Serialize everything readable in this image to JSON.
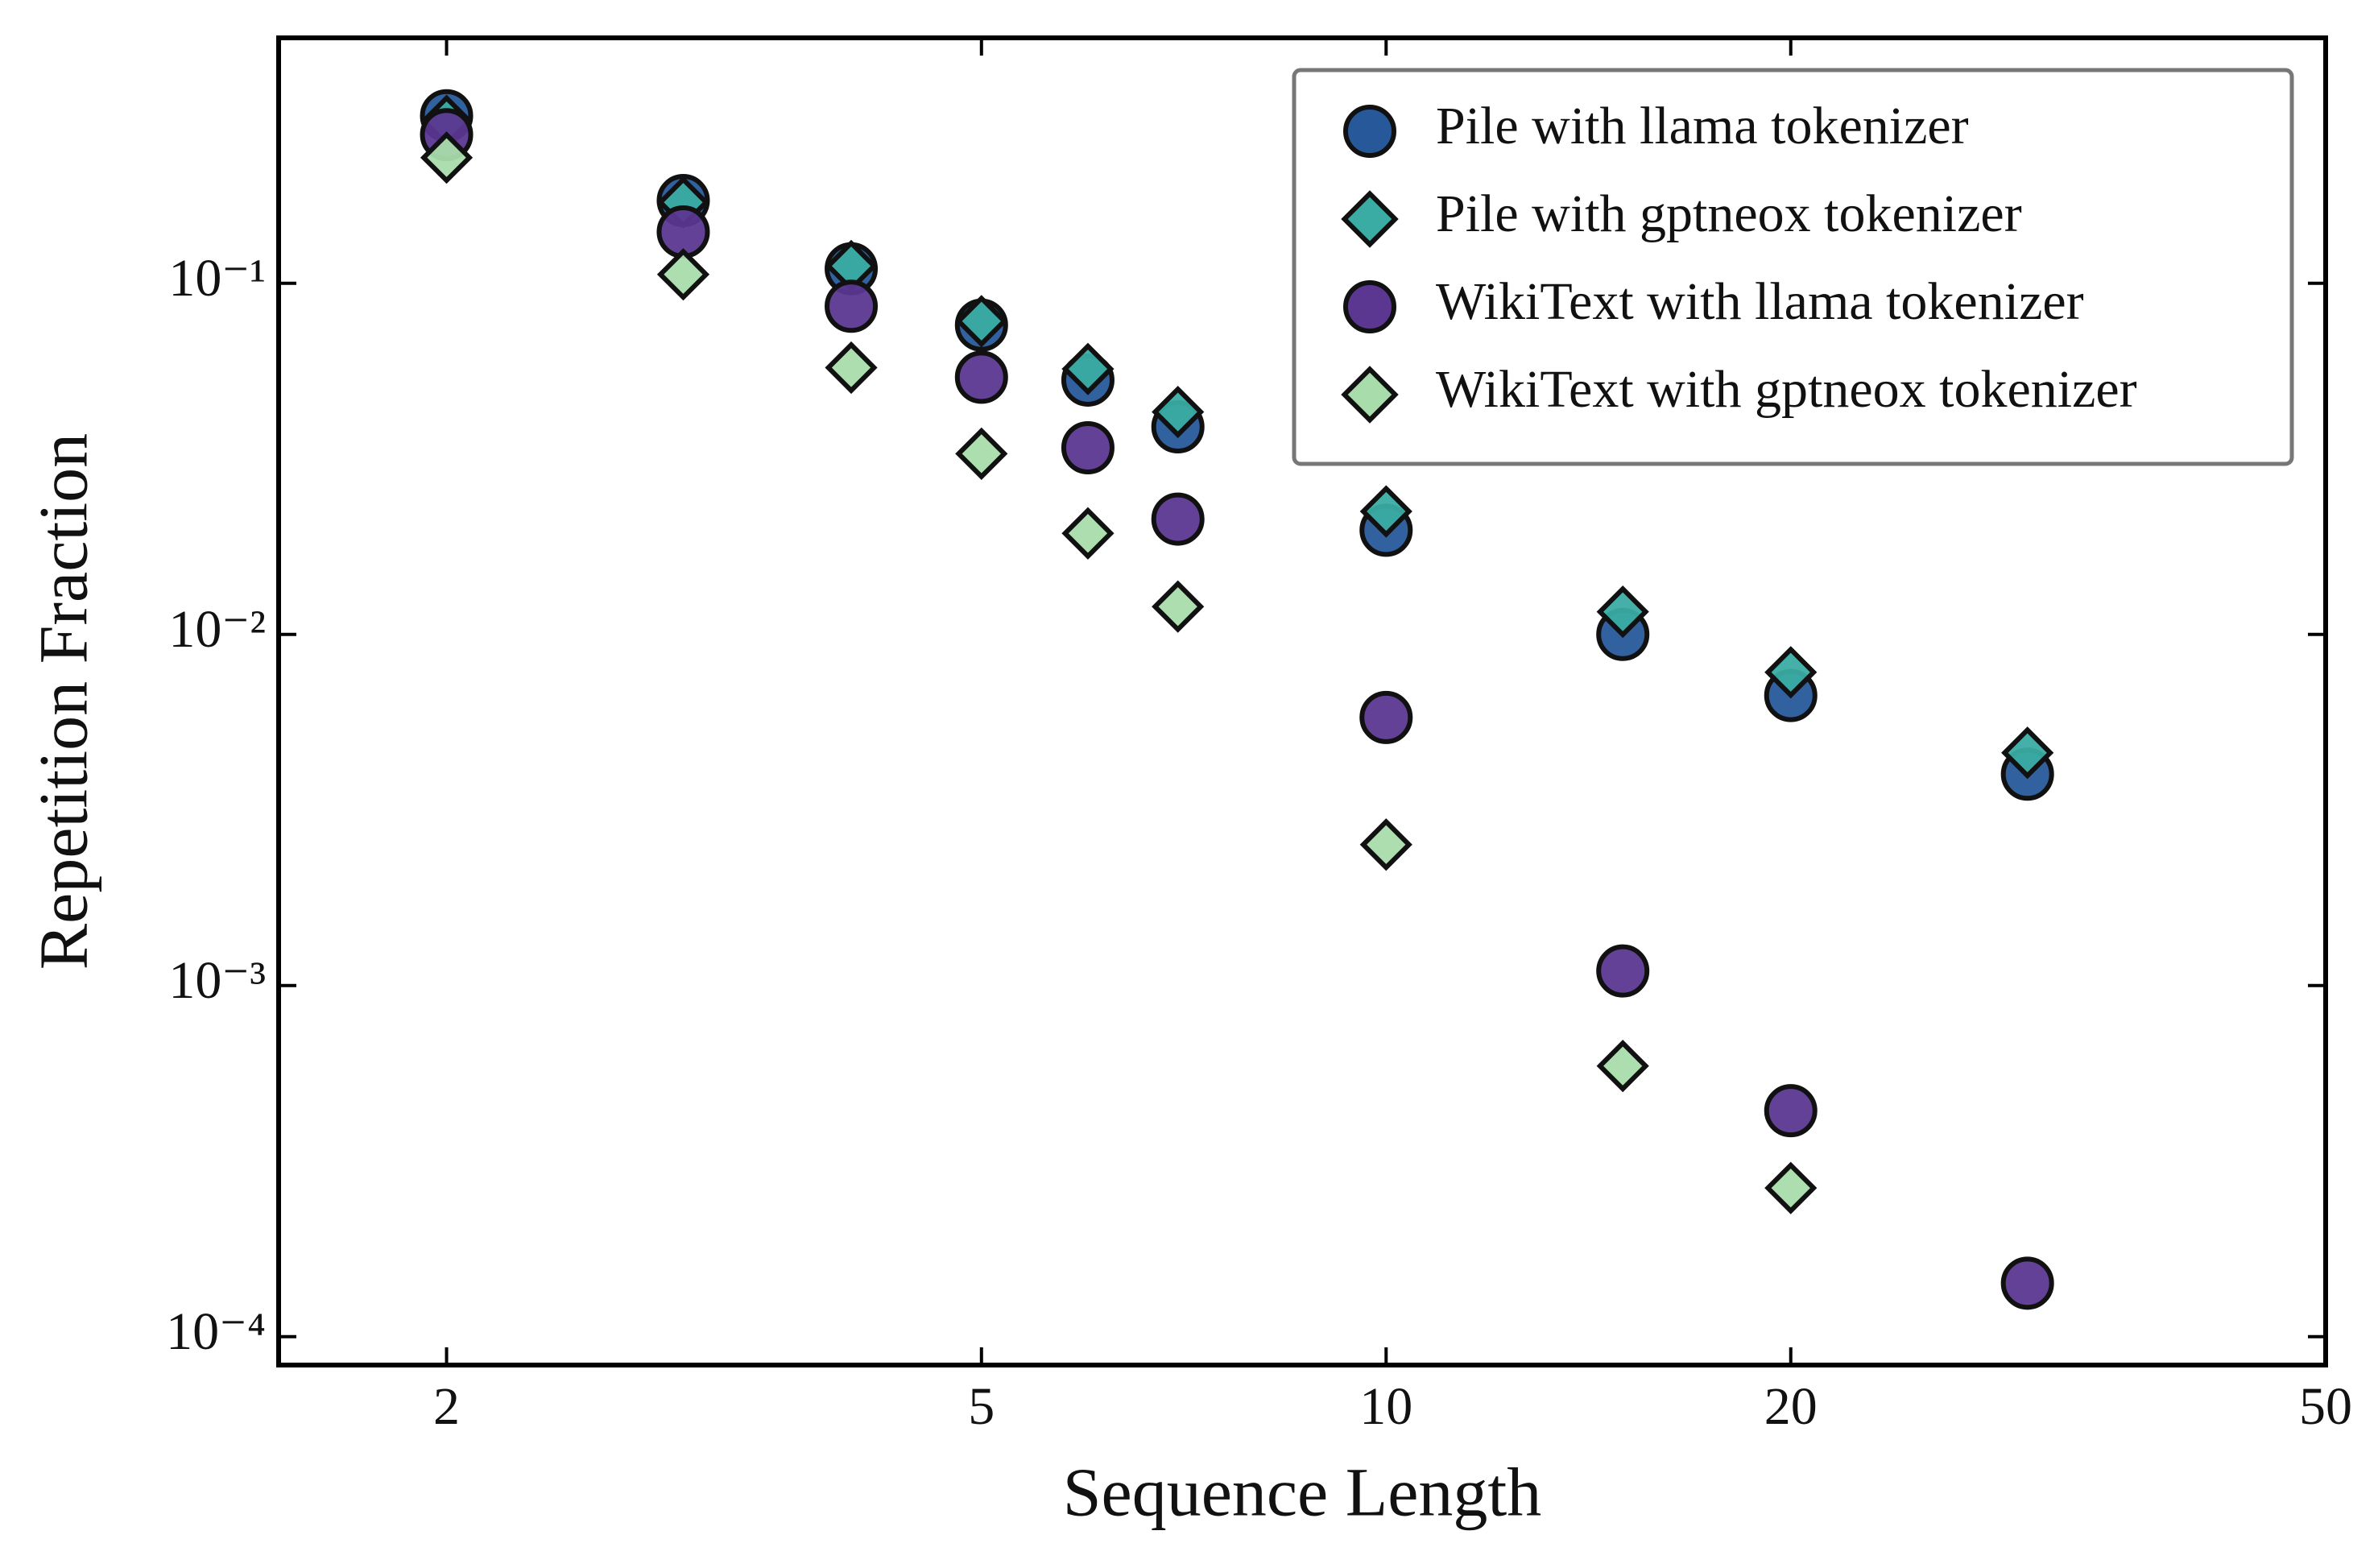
{
  "chart_data": {
    "type": "scatter",
    "xlabel": "Sequence Length",
    "ylabel": "Repetition Fraction",
    "x": [
      2,
      3,
      4,
      5,
      6,
      7,
      10,
      15,
      20,
      30
    ],
    "series": [
      {
        "name": "Pile with llama tokenizer",
        "color": "#27599a",
        "marker": "circle",
        "values": [
          0.3,
          0.172,
          0.11,
          0.076,
          0.053,
          0.039,
          0.0198,
          0.01,
          0.0067,
          0.004
        ]
      },
      {
        "name": "Pile with gptneox tokenizer",
        "color": "#3aaca3",
        "marker": "diamond",
        "values": [
          0.29,
          0.17,
          0.112,
          0.078,
          0.057,
          0.043,
          0.0224,
          0.0116,
          0.0078,
          0.0046
        ]
      },
      {
        "name": "WikiText with llama tokenizer",
        "color": "#5b3791",
        "marker": "circle",
        "values": [
          0.265,
          0.14,
          0.086,
          0.054,
          0.034,
          0.0213,
          0.0058,
          0.0011,
          0.00044,
          0.000142
        ]
      },
      {
        "name": "WikiText with gptneox tokenizer",
        "color": "#a9dcab",
        "marker": "diamond",
        "values": [
          0.228,
          0.106,
          0.0575,
          0.0327,
          0.0194,
          0.012,
          0.00252,
          0.00059,
          0.000265,
          null
        ]
      }
    ],
    "xscale": "log",
    "yscale": "log",
    "xlim": [
      1.5,
      50
    ],
    "ylim": [
      8.3e-05,
      0.5
    ],
    "xticks": [
      2,
      5,
      10,
      20,
      50
    ],
    "yticks": [
      {
        "value": 0.1,
        "label": "10⁻¹"
      },
      {
        "value": 0.01,
        "label": "10⁻²"
      },
      {
        "value": 0.001,
        "label": "10⁻³"
      },
      {
        "value": 0.0001,
        "label": "10⁻⁴"
      }
    ],
    "legend": "upper right"
  }
}
